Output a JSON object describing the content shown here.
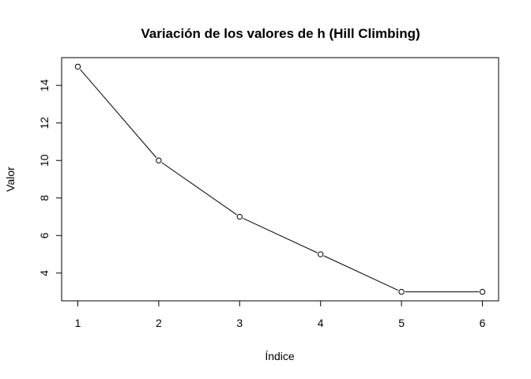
{
  "chart_data": {
    "type": "line",
    "title": "Variación de los valores de h (Hill Climbing)",
    "xlabel": "Índice",
    "ylabel": "Valor",
    "x": [
      1,
      2,
      3,
      4,
      5,
      6
    ],
    "y": [
      15,
      10,
      7,
      5,
      3,
      3
    ],
    "xticks": [
      1,
      2,
      3,
      4,
      5,
      6
    ],
    "yticks": [
      4,
      6,
      8,
      10,
      12,
      14
    ],
    "xlim": [
      0.8,
      6.2
    ],
    "ylim": [
      2.52,
      15.48
    ],
    "grid": false,
    "marker": "open-circle",
    "line_color": "#000000"
  }
}
